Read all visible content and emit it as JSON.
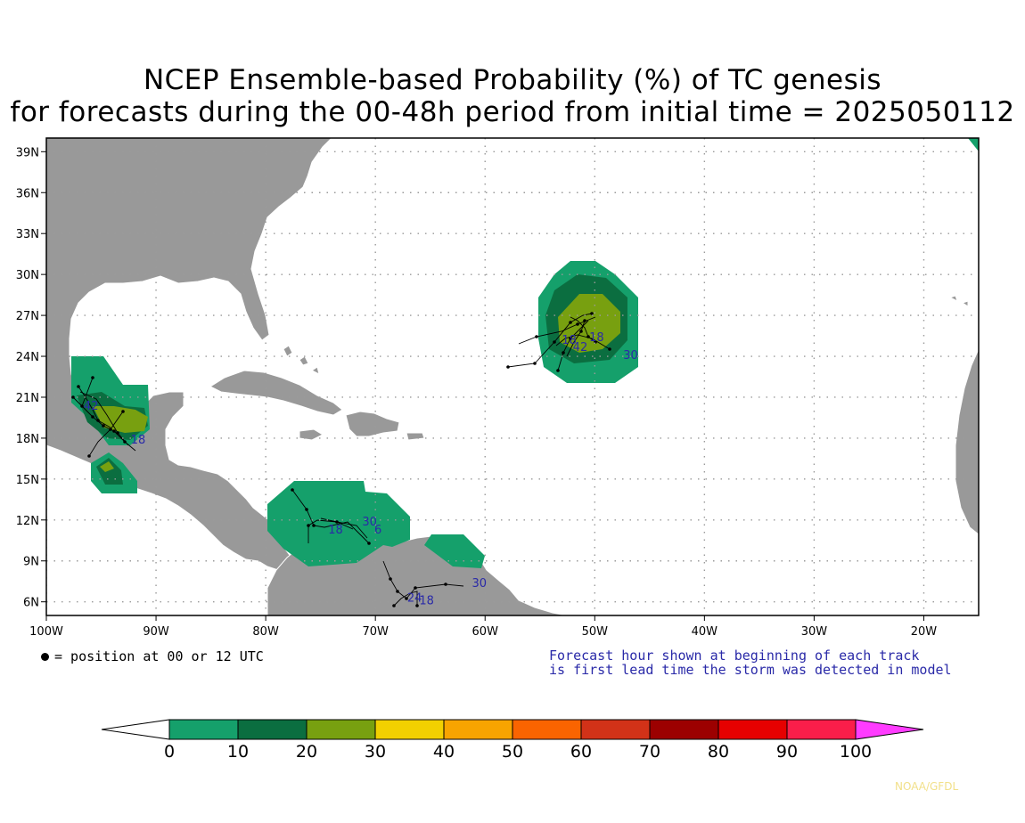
{
  "title_line1": "NCEP Ensemble-based Probability (%) of TC genesis",
  "title_line2": "for forecasts during the 00-48h period from initial time = 2025050112",
  "map": {
    "lon_range": [
      -100,
      -15
    ],
    "lat_range": [
      5,
      40
    ],
    "lat_labels": [
      "39N",
      "36N",
      "33N",
      "30N",
      "27N",
      "24N",
      "21N",
      "18N",
      "15N",
      "12N",
      "9N",
      "6N"
    ],
    "lat_values": [
      39,
      36,
      33,
      30,
      27,
      24,
      21,
      18,
      15,
      12,
      9,
      6
    ],
    "lon_labels": [
      "100W",
      "90W",
      "80W",
      "70W",
      "60W",
      "50W",
      "40W",
      "30W",
      "20W"
    ],
    "lon_values": [
      -100,
      -90,
      -80,
      -70,
      -60,
      -50,
      -40,
      -30,
      -20
    ],
    "land_color": "#999999",
    "ocean_color": "#ffffff"
  },
  "legend_left": "= position at 00 or 12 UTC",
  "legend_right_line1": "Forecast hour shown at beginning of each track",
  "legend_right_line2": "is first lead time the storm was detected in model",
  "colorbar": {
    "labels": [
      "0",
      "10",
      "20",
      "30",
      "40",
      "50",
      "60",
      "70",
      "80",
      "90",
      "100"
    ],
    "colors": [
      "#15a06b",
      "#0b6e40",
      "#78a010",
      "#f2d000",
      "#f8a400",
      "#fa6400",
      "#d23218",
      "#9c0000",
      "#e60000",
      "#fa1e4a",
      "#ff3cff"
    ]
  },
  "forecast_hour_labels": [
    {
      "text": "42",
      "lon": -96.6,
      "lat": 20.1
    },
    {
      "text": "18",
      "lon": -92.3,
      "lat": 17.6
    },
    {
      "text": "18",
      "lon": -53.0,
      "lat": 24.9
    },
    {
      "text": "42",
      "lon": -52.0,
      "lat": 24.4
    },
    {
      "text": "18",
      "lon": -50.5,
      "lat": 25.1
    },
    {
      "text": "30",
      "lon": -47.4,
      "lat": 23.8
    },
    {
      "text": "18",
      "lon": -74.3,
      "lat": 11.0
    },
    {
      "text": "30",
      "lon": -71.2,
      "lat": 11.6
    },
    {
      "text": "6",
      "lon": -70.1,
      "lat": 11.0
    },
    {
      "text": "30",
      "lon": -61.2,
      "lat": 7.1
    },
    {
      "text": "24",
      "lon": -67.1,
      "lat": 6.0
    },
    {
      "text": "18",
      "lon": -66.0,
      "lat": 5.8
    }
  ],
  "credit": "NOAA/GFDL"
}
